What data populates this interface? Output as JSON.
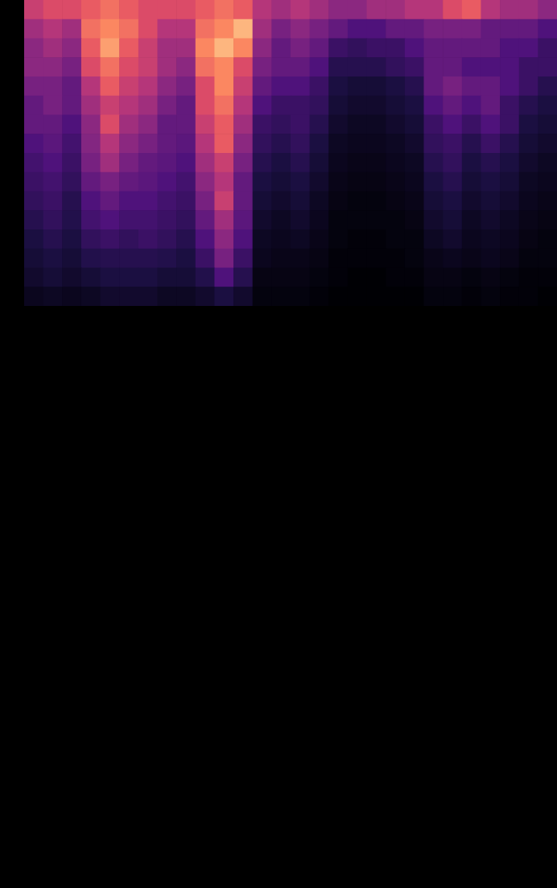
{
  "chart_data": {
    "type": "heatmap",
    "tick_labels": false,
    "color_range": [
      0,
      1
    ],
    "cells": [
      [
        0.55,
        0.6,
        0.6,
        0.65,
        0.7,
        0.65,
        0.6,
        0.6,
        0.6,
        0.65,
        0.7,
        0.65,
        0.5,
        0.45,
        0.5,
        0.45,
        0.4,
        0.4,
        0.45,
        0.45,
        0.5,
        0.5,
        0.6,
        0.65,
        0.5,
        0.45,
        0.45,
        0.4
      ],
      [
        0.45,
        0.5,
        0.45,
        0.7,
        0.75,
        0.7,
        0.6,
        0.5,
        0.5,
        0.7,
        0.75,
        0.85,
        0.45,
        0.35,
        0.4,
        0.35,
        0.3,
        0.25,
        0.25,
        0.3,
        0.3,
        0.35,
        0.35,
        0.35,
        0.3,
        0.3,
        0.3,
        0.25
      ],
      [
        0.4,
        0.45,
        0.4,
        0.65,
        0.8,
        0.65,
        0.55,
        0.45,
        0.45,
        0.75,
        0.85,
        0.75,
        0.4,
        0.3,
        0.35,
        0.3,
        0.2,
        0.18,
        0.2,
        0.2,
        0.25,
        0.3,
        0.3,
        0.3,
        0.3,
        0.25,
        0.25,
        0.2
      ],
      [
        0.4,
        0.4,
        0.35,
        0.6,
        0.7,
        0.6,
        0.55,
        0.45,
        0.4,
        0.7,
        0.75,
        0.6,
        0.35,
        0.3,
        0.3,
        0.25,
        0.15,
        0.15,
        0.15,
        0.18,
        0.2,
        0.3,
        0.3,
        0.25,
        0.25,
        0.25,
        0.2,
        0.2
      ],
      [
        0.35,
        0.35,
        0.3,
        0.5,
        0.65,
        0.55,
        0.5,
        0.4,
        0.35,
        0.6,
        0.75,
        0.55,
        0.3,
        0.25,
        0.25,
        0.2,
        0.12,
        0.1,
        0.1,
        0.12,
        0.15,
        0.3,
        0.35,
        0.3,
        0.3,
        0.25,
        0.2,
        0.15
      ],
      [
        0.3,
        0.35,
        0.3,
        0.45,
        0.55,
        0.5,
        0.45,
        0.35,
        0.3,
        0.6,
        0.7,
        0.5,
        0.25,
        0.2,
        0.2,
        0.18,
        0.1,
        0.08,
        0.08,
        0.1,
        0.12,
        0.25,
        0.3,
        0.25,
        0.3,
        0.2,
        0.15,
        0.12
      ],
      [
        0.3,
        0.3,
        0.25,
        0.4,
        0.6,
        0.45,
        0.4,
        0.3,
        0.3,
        0.55,
        0.65,
        0.45,
        0.2,
        0.18,
        0.2,
        0.15,
        0.08,
        0.06,
        0.06,
        0.08,
        0.1,
        0.2,
        0.25,
        0.2,
        0.25,
        0.2,
        0.12,
        0.1
      ],
      [
        0.25,
        0.28,
        0.22,
        0.38,
        0.5,
        0.4,
        0.35,
        0.3,
        0.28,
        0.5,
        0.65,
        0.4,
        0.18,
        0.15,
        0.18,
        0.12,
        0.06,
        0.05,
        0.05,
        0.06,
        0.08,
        0.18,
        0.2,
        0.15,
        0.2,
        0.15,
        0.1,
        0.08
      ],
      [
        0.22,
        0.25,
        0.2,
        0.35,
        0.45,
        0.35,
        0.3,
        0.28,
        0.25,
        0.45,
        0.55,
        0.35,
        0.15,
        0.12,
        0.15,
        0.1,
        0.05,
        0.04,
        0.04,
        0.05,
        0.06,
        0.15,
        0.18,
        0.12,
        0.15,
        0.12,
        0.08,
        0.06
      ],
      [
        0.2,
        0.22,
        0.18,
        0.3,
        0.35,
        0.3,
        0.28,
        0.25,
        0.22,
        0.4,
        0.5,
        0.3,
        0.12,
        0.1,
        0.12,
        0.08,
        0.04,
        0.03,
        0.03,
        0.04,
        0.05,
        0.12,
        0.15,
        0.1,
        0.12,
        0.1,
        0.06,
        0.05
      ],
      [
        0.18,
        0.2,
        0.15,
        0.25,
        0.3,
        0.25,
        0.25,
        0.22,
        0.2,
        0.35,
        0.55,
        0.3,
        0.1,
        0.08,
        0.1,
        0.06,
        0.03,
        0.02,
        0.02,
        0.03,
        0.04,
        0.1,
        0.12,
        0.08,
        0.1,
        0.08,
        0.05,
        0.04
      ],
      [
        0.15,
        0.18,
        0.14,
        0.22,
        0.25,
        0.22,
        0.22,
        0.2,
        0.18,
        0.3,
        0.45,
        0.28,
        0.08,
        0.06,
        0.08,
        0.05,
        0.02,
        0.02,
        0.02,
        0.02,
        0.03,
        0.08,
        0.1,
        0.06,
        0.08,
        0.06,
        0.04,
        0.03
      ],
      [
        0.12,
        0.15,
        0.12,
        0.18,
        0.2,
        0.18,
        0.2,
        0.18,
        0.15,
        0.25,
        0.4,
        0.25,
        0.06,
        0.05,
        0.06,
        0.04,
        0.02,
        0.01,
        0.01,
        0.02,
        0.02,
        0.06,
        0.08,
        0.05,
        0.06,
        0.05,
        0.03,
        0.02
      ],
      [
        0.1,
        0.12,
        0.1,
        0.14,
        0.15,
        0.15,
        0.15,
        0.14,
        0.12,
        0.2,
        0.35,
        0.2,
        0.05,
        0.04,
        0.04,
        0.03,
        0.01,
        0.01,
        0.01,
        0.01,
        0.02,
        0.04,
        0.05,
        0.04,
        0.05,
        0.04,
        0.02,
        0.02
      ],
      [
        0.08,
        0.1,
        0.08,
        0.1,
        0.12,
        0.12,
        0.12,
        0.1,
        0.1,
        0.14,
        0.25,
        0.15,
        0.03,
        0.03,
        0.03,
        0.02,
        0.01,
        0,
        0,
        0.01,
        0.01,
        0.03,
        0.03,
        0.02,
        0.03,
        0.02,
        0.01,
        0.01
      ],
      [
        0.05,
        0.06,
        0.05,
        0.06,
        0.08,
        0.08,
        0.08,
        0.06,
        0.06,
        0.08,
        0.12,
        0.08,
        0.02,
        0.02,
        0.02,
        0.01,
        0,
        0,
        0,
        0,
        0,
        0.02,
        0.02,
        0.01,
        0.02,
        0.01,
        0.01,
        0
      ]
    ]
  }
}
